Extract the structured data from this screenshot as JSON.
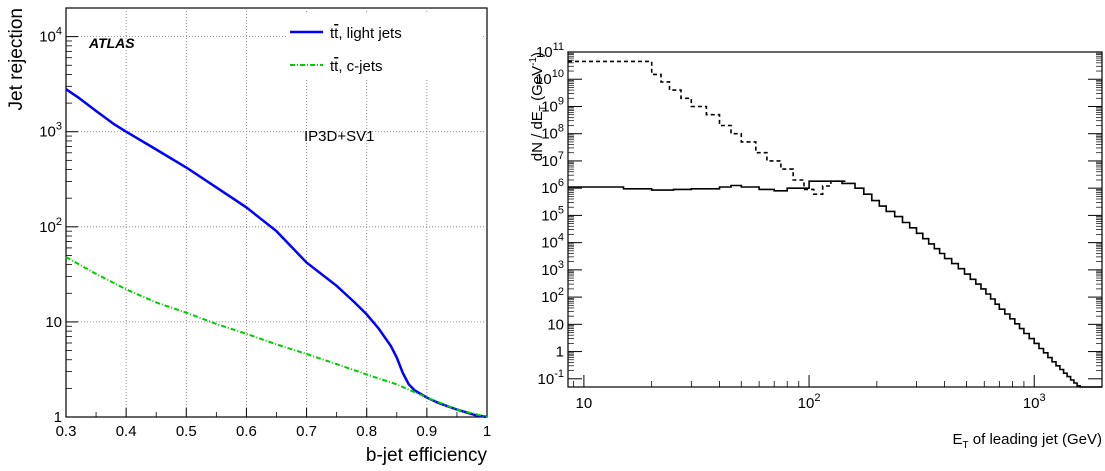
{
  "chart_data": [
    {
      "type": "line",
      "title": "",
      "xlabel": "b-jet efficiency",
      "ylabel": "Jet rejection",
      "xlim": [
        0.3,
        1.0
      ],
      "ylim": [
        1,
        20000
      ],
      "yscale": "log",
      "grid": true,
      "legend_position": "top-right",
      "annotations": {
        "experiment": "ATLAS",
        "tagger": "IP3D+SV1"
      },
      "xticks": [
        "0.3",
        "0.4",
        "0.5",
        "0.6",
        "0.7",
        "0.8",
        "0.9",
        "1"
      ],
      "yticks": [
        {
          "v": 1,
          "label": "1"
        },
        {
          "v": 10,
          "label": "10"
        },
        {
          "v": 100,
          "base": "10",
          "exp": "2"
        },
        {
          "v": 1000,
          "base": "10",
          "exp": "3"
        },
        {
          "v": 10000,
          "base": "10",
          "exp": "4"
        }
      ],
      "legend": [
        {
          "pre": "t",
          "bar": "t",
          "post": ", light jets"
        },
        {
          "pre": "t",
          "bar": "t",
          "post": ", c-jets"
        }
      ],
      "series": [
        {
          "name": "tt̄, light jets",
          "color": "#0000ff",
          "style": "solid",
          "x": [
            0.3,
            0.32,
            0.35,
            0.38,
            0.4,
            0.45,
            0.5,
            0.55,
            0.6,
            0.65,
            0.7,
            0.75,
            0.78,
            0.8,
            0.82,
            0.84,
            0.85,
            0.86,
            0.87,
            0.88,
            0.9,
            0.92,
            0.95,
            0.98,
            1.0
          ],
          "y": [
            2800,
            2300,
            1650,
            1200,
            1000,
            650,
            420,
            260,
            160,
            90,
            42,
            24,
            16,
            12,
            8.5,
            5.6,
            4.2,
            2.9,
            2.2,
            1.9,
            1.6,
            1.4,
            1.2,
            1.05,
            1.0
          ]
        },
        {
          "name": "tt̄, c-jets",
          "color": "#00cc00",
          "style": "dash-dot",
          "x": [
            0.3,
            0.35,
            0.4,
            0.45,
            0.5,
            0.55,
            0.6,
            0.65,
            0.7,
            0.75,
            0.8,
            0.85,
            0.9,
            0.95,
            1.0
          ],
          "y": [
            48,
            32,
            22,
            16,
            12.5,
            9.5,
            7.5,
            5.8,
            4.6,
            3.6,
            2.8,
            2.2,
            1.6,
            1.2,
            1.0
          ]
        }
      ]
    },
    {
      "type": "line",
      "title": "",
      "xlabel_pre": "E",
      "xlabel_sub": "T",
      "xlabel_post": " of leading jet (GeV)",
      "ylabel_pre": "dN / dE",
      "ylabel_sub": "T",
      "ylabel_mid": " (GeV",
      "ylabel_sup": "-1",
      "ylabel_post": ")",
      "xscale": "log",
      "yscale": "log",
      "xlim": [
        8.5,
        2000
      ],
      "ylim": [
        0.05,
        100000000000
      ],
      "grid": false,
      "xticks": [
        {
          "v": 10,
          "label": "10"
        },
        {
          "v": 100,
          "base": "10",
          "exp": "2"
        },
        {
          "v": 1000,
          "base": "10",
          "exp": "3"
        }
      ],
      "yticks": [
        {
          "v": 0.1,
          "base": "10",
          "exp": "-1"
        },
        {
          "v": 1,
          "label": "1"
        },
        {
          "v": 10,
          "label": "10"
        },
        {
          "v": 100,
          "base": "10",
          "exp": "2"
        },
        {
          "v": 1000,
          "base": "10",
          "exp": "3"
        },
        {
          "v": 10000,
          "base": "10",
          "exp": "4"
        },
        {
          "v": 100000,
          "base": "10",
          "exp": "5"
        },
        {
          "v": 1000000,
          "base": "10",
          "exp": "6"
        },
        {
          "v": 10000000,
          "base": "10",
          "exp": "7"
        },
        {
          "v": 100000000,
          "base": "10",
          "exp": "8"
        },
        {
          "v": 1000000000,
          "base": "10",
          "exp": "9"
        },
        {
          "v": 10000000000,
          "base": "10",
          "exp": "10"
        },
        {
          "v": 100000000000,
          "base": "10",
          "exp": "11"
        }
      ],
      "series": [
        {
          "style": "dashed-step",
          "color": "#000000",
          "edges": [
            8.5,
            20,
            22,
            24,
            27,
            30,
            35,
            40,
            45,
            50,
            58,
            65,
            75,
            85,
            95,
            105,
            115,
            125,
            135,
            145
          ],
          "values": [
            45000000000,
            15000000000,
            8000000000,
            4000000000,
            2000000000,
            1000000000,
            500000000,
            200000000,
            100000000,
            50000000,
            20000000,
            10000000,
            5000000,
            2000000,
            900000,
            600000,
            1200000,
            1800000,
            1800000
          ]
        },
        {
          "style": "solid-step",
          "color": "#000000",
          "edges": [
            8.5,
            15,
            20,
            25,
            30,
            40,
            45,
            50,
            60,
            70,
            80,
            100,
            140,
            160,
            175,
            190,
            205,
            220,
            240,
            260,
            280,
            300,
            320,
            340,
            360,
            380,
            400,
            430,
            460,
            490,
            520,
            550,
            580,
            610,
            640,
            670,
            700,
            740,
            780,
            820,
            860,
            900,
            950,
            1000,
            1050,
            1100,
            1150,
            1200,
            1250,
            1300,
            1350,
            1400,
            1450,
            1500,
            1550,
            1600,
            1650,
            1700,
            1750,
            1800,
            1850,
            1900,
            1950,
            2000
          ],
          "values": [
            1100000,
            950000,
            850000,
            900000,
            950000,
            1100000,
            1250000,
            1100000,
            900000,
            800000,
            1000000,
            1800000,
            1500000,
            1000000,
            600000,
            350000,
            220000,
            140000,
            90000,
            55000,
            35000,
            22000,
            14000,
            9000,
            6000,
            4000,
            2600,
            1700,
            1100,
            700,
            450,
            300,
            200,
            130,
            85,
            55,
            36,
            24,
            16,
            10.5,
            7,
            4.6,
            3,
            2,
            1.3,
            0.9,
            0.6,
            0.42,
            0.3,
            0.22,
            0.16,
            0.12,
            0.09,
            0.07,
            0.055,
            0.05,
            0.05,
            0.05,
            0.05,
            0.05,
            0.05,
            0.05,
            0.05
          ]
        }
      ]
    }
  ]
}
